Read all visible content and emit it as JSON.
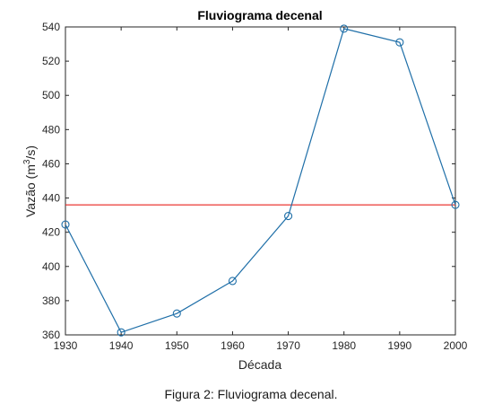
{
  "chart_data": {
    "type": "line",
    "title": "Fluviograma decenal",
    "xlabel": "Década",
    "ylabel": {
      "prefix": "Vazão (m",
      "sup": "3",
      "suffix": "/s)"
    },
    "xlim": [
      1930,
      2000
    ],
    "ylim": [
      360,
      540
    ],
    "xticks": [
      1930,
      1940,
      1950,
      1960,
      1970,
      1980,
      1990,
      2000
    ],
    "yticks": [
      360,
      380,
      400,
      420,
      440,
      460,
      480,
      500,
      520,
      540
    ],
    "series": [
      {
        "color": "#1f6fa8",
        "marker": "circle",
        "x": [
          1930,
          1940,
          1950,
          1960,
          1970,
          1980,
          1990,
          2000
        ],
        "y": [
          424.5,
          361.5,
          372.5,
          391.5,
          429.5,
          539,
          531,
          436
        ]
      }
    ],
    "reference_line": {
      "y": 436,
      "color": "#e8231f"
    },
    "grid": false
  },
  "caption": "Figura 2: Fluviograma decenal."
}
